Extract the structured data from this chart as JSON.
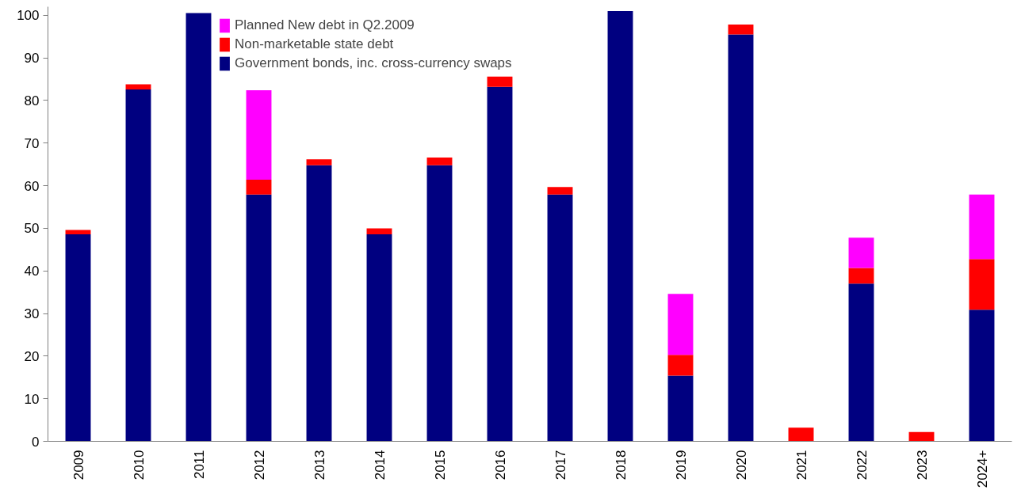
{
  "chart_data": {
    "type": "bar",
    "stacked": true,
    "categories": [
      "2009",
      "2010",
      "2011",
      "2012",
      "2013",
      "2014",
      "2015",
      "2016",
      "2017",
      "2018",
      "2019",
      "2020",
      "2021",
      "2022",
      "2023",
      "2024+"
    ],
    "series": [
      {
        "name": "Government bonds, inc. cross-currency swaps",
        "color": "#000080",
        "values": [
          48.6,
          82.6,
          100.5,
          57.9,
          64.8,
          48.6,
          64.8,
          83.2,
          57.9,
          101.0,
          15.4,
          95.5,
          0,
          37.0,
          0,
          30.9
        ]
      },
      {
        "name": "Non-marketable state debt",
        "color": "#ff0000",
        "values": [
          1.0,
          1.2,
          0,
          3.5,
          1.4,
          1.4,
          1.8,
          2.4,
          1.8,
          0,
          4.9,
          2.3,
          3.2,
          3.7,
          2.2,
          11.9
        ]
      },
      {
        "name": "Planned New debt in Q2.2009",
        "color": "#ff00ff",
        "values": [
          0,
          0,
          0,
          21.0,
          0,
          0,
          0,
          0,
          0,
          0,
          14.3,
          0,
          0,
          7.1,
          0,
          15.1
        ]
      }
    ],
    "ylim": [
      0,
      102
    ],
    "yticks": [
      0,
      10,
      20,
      30,
      40,
      50,
      60,
      70,
      80,
      90,
      100
    ],
    "grid": false,
    "legend": "top"
  }
}
